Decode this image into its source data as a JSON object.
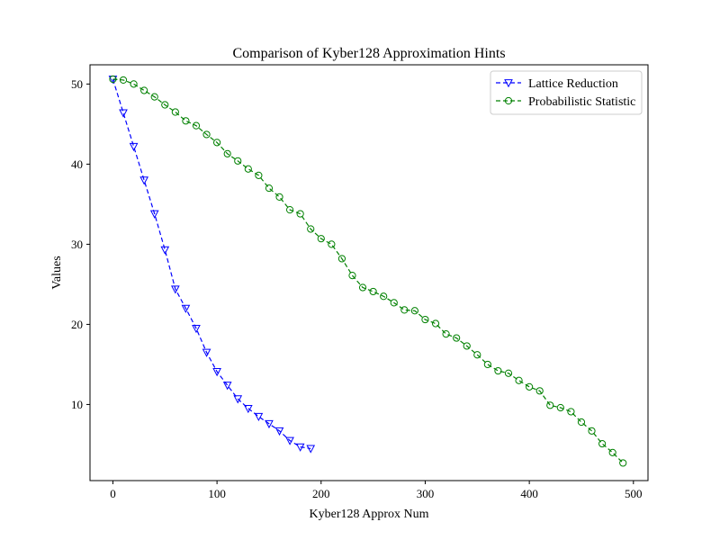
{
  "chart_data": {
    "type": "line",
    "title": "Comparison of Kyber128 Approximation Hints",
    "xlabel": "Kyber128 Approx Num",
    "ylabel": "Values",
    "xlim": [
      -22,
      514
    ],
    "ylim": [
      0.5,
      52.4
    ],
    "xticks": [
      0,
      100,
      200,
      300,
      400,
      500
    ],
    "yticks": [
      10,
      20,
      30,
      40,
      50
    ],
    "grid": false,
    "legend_position": "top-right",
    "series": [
      {
        "name": "Lattice Reduction",
        "color": "#0000ff",
        "marker": "triangle-down",
        "linestyle": "dashed",
        "x": [
          0,
          10,
          20,
          30,
          40,
          50,
          60,
          70,
          80,
          90,
          100,
          110,
          120,
          130,
          140,
          150,
          160,
          170,
          180,
          190
        ],
        "y": [
          50.6,
          46.4,
          42.2,
          38.0,
          33.8,
          29.3,
          24.4,
          22.0,
          19.5,
          16.5,
          14.1,
          12.4,
          10.7,
          9.5,
          8.5,
          7.6,
          6.7,
          5.5,
          4.7,
          4.5
        ]
      },
      {
        "name": "Probabilistic Statistic",
        "color": "#008000",
        "marker": "circle",
        "linestyle": "dashed",
        "x": [
          0,
          10,
          20,
          30,
          40,
          50,
          60,
          70,
          80,
          90,
          100,
          110,
          120,
          130,
          140,
          150,
          160,
          170,
          180,
          190,
          200,
          210,
          220,
          230,
          240,
          250,
          260,
          270,
          280,
          290,
          300,
          310,
          320,
          330,
          340,
          350,
          360,
          370,
          380,
          390,
          400,
          410,
          420,
          430,
          440,
          450,
          460,
          470,
          480,
          490
        ],
        "y": [
          50.6,
          50.5,
          50.0,
          49.2,
          48.4,
          47.4,
          46.5,
          45.4,
          44.8,
          43.7,
          42.7,
          41.3,
          40.4,
          39.4,
          38.6,
          37.0,
          35.9,
          34.3,
          33.8,
          31.9,
          30.7,
          30.0,
          28.2,
          26.1,
          24.6,
          24.1,
          23.5,
          22.7,
          21.8,
          21.7,
          20.6,
          20.1,
          18.8,
          18.3,
          17.3,
          16.2,
          15.0,
          14.2,
          13.9,
          13.0,
          12.2,
          11.7,
          9.9,
          9.6,
          9.1,
          7.8,
          6.7,
          5.1,
          4.0,
          2.7
        ]
      }
    ]
  }
}
